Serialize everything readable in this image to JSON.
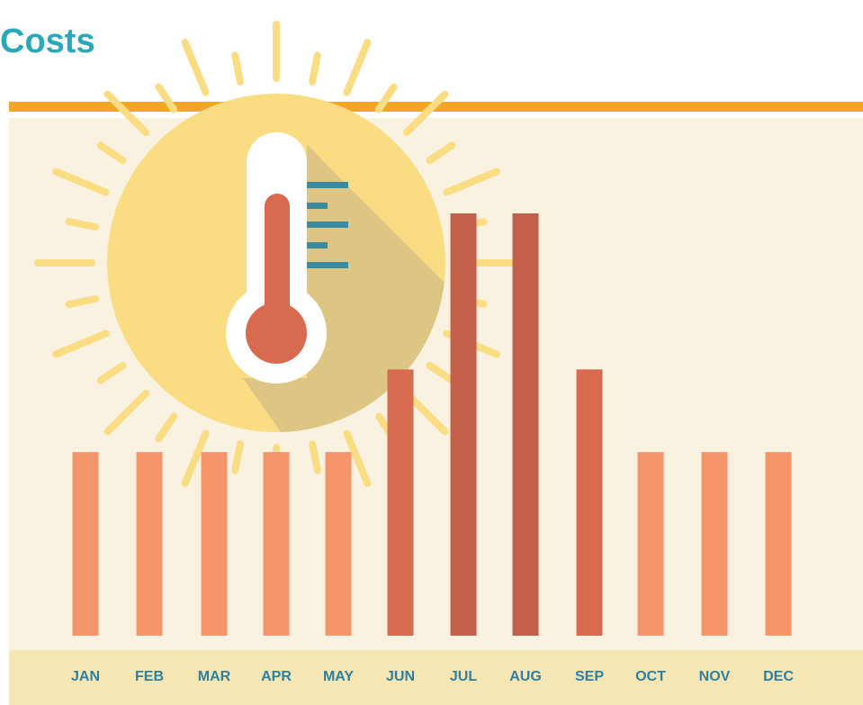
{
  "chart_data": {
    "type": "bar",
    "title": "Costs",
    "categories": [
      "JAN",
      "FEB",
      "MAR",
      "APR",
      "MAY",
      "JUN",
      "JUL",
      "AUG",
      "SEP",
      "OCT",
      "NOV",
      "DEC"
    ],
    "values": [
      2.0,
      2.0,
      2.0,
      2.0,
      2.0,
      2.9,
      4.6,
      4.6,
      2.9,
      2.0,
      2.0,
      2.0
    ],
    "colors": [
      "#f4956a",
      "#f4956a",
      "#f4956a",
      "#f4956a",
      "#f4956a",
      "#d86a50",
      "#c2604a",
      "#c2604a",
      "#d86a50",
      "#f4956a",
      "#f4956a",
      "#f4956a"
    ],
    "ylim": [
      0,
      4.6
    ]
  }
}
